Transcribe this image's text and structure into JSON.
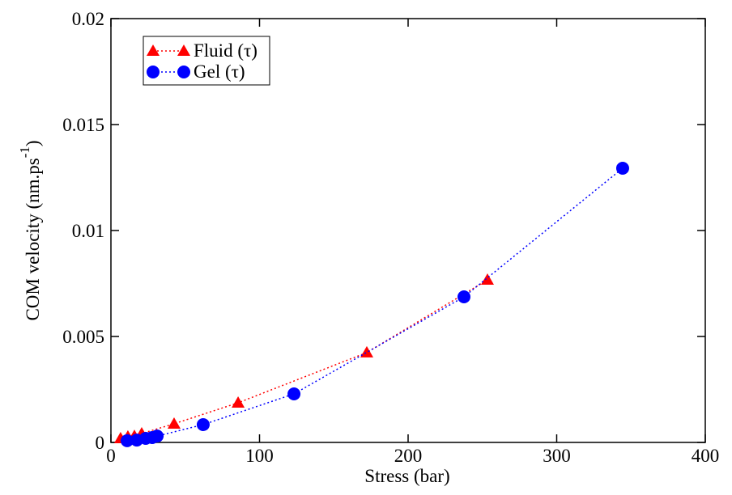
{
  "chart_data": {
    "type": "line",
    "x_label": "Stress (bar)",
    "y_label": "COM velocity (nm.ps",
    "y_label_superscript": "-1",
    "y_label_end": ")",
    "xlim": [
      0,
      400
    ],
    "xticks": [
      0,
      100,
      200,
      300,
      400
    ],
    "ylim": [
      0,
      0.02
    ],
    "yticks": [
      0,
      0.005,
      0.01,
      0.015,
      0.02
    ],
    "legend": "top-left",
    "grid": false,
    "series": [
      {
        "name": "Fluid (τ)",
        "color": "#ff0000",
        "marker": "triangle",
        "x": [
          6.5,
          11.4,
          15.8,
          20.7,
          42.5,
          85.6,
          172.2,
          253.4
        ],
        "values": [
          0.00019,
          0.00027,
          0.0003,
          0.00042,
          0.00088,
          0.00187,
          0.00424,
          0.00767
        ]
      },
      {
        "name": "Gel (τ)",
        "color": "#0000ff",
        "marker": "circle",
        "x": [
          10.9,
          17.4,
          23.4,
          27.8,
          31.1,
          62.1,
          123.2,
          237.6,
          344.4
        ],
        "values": [
          8e-05,
          0.00011,
          0.00019,
          0.00023,
          0.0003,
          0.00084,
          0.00229,
          0.00687,
          0.01294
        ]
      }
    ]
  }
}
